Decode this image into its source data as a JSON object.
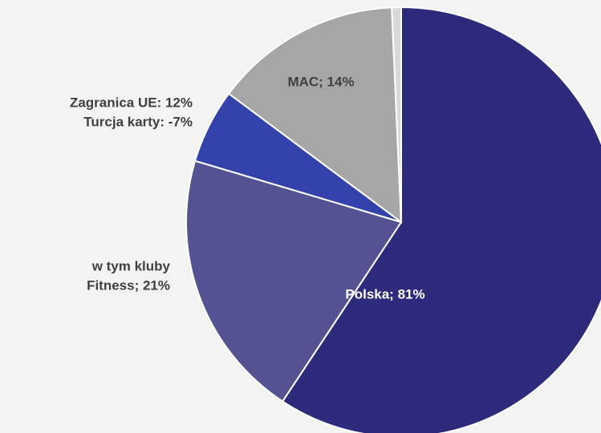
{
  "chart_data": {
    "type": "pie",
    "categories": [
      [
        "Polska; 81%"
      ],
      [
        "w tym kluby",
        "Fitness; 21%"
      ],
      [
        "Zagranica UE: 12%",
        "Turcja karty: -7%"
      ],
      [
        "MAC; 14%"
      ],
      null
    ],
    "values": [
      59.3,
      20.3,
      5.6,
      14.1,
      0.7
    ],
    "colors": [
      "#2e2a7c",
      "#555294",
      "#3442ab",
      "#a6a6a6",
      "#d9d9d9"
    ]
  }
}
